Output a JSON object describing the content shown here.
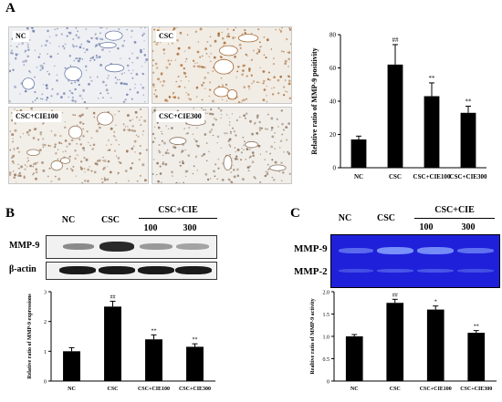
{
  "panels": {
    "a": {
      "letter": "A"
    },
    "b": {
      "letter": "B"
    },
    "c": {
      "letter": "C"
    }
  },
  "micrographs": [
    {
      "label": "NC"
    },
    {
      "label": "CSC"
    },
    {
      "label": "CSC+CIE100"
    },
    {
      "label": "CSC+CIE300"
    }
  ],
  "western": {
    "lanes": [
      "NC",
      "CSC",
      "100",
      "300"
    ],
    "group_label": "CSC+CIE",
    "rows": [
      "MMP-9",
      "β-actin"
    ]
  },
  "zymography": {
    "lanes": [
      "NC",
      "CSC",
      "100",
      "300"
    ],
    "group_label": "CSC+CIE",
    "rows": [
      "MMP-9",
      "MMP-2"
    ]
  },
  "colors": {
    "bar": "#000000",
    "zymo_bg": "#1f20d9",
    "stain_csc": "#b07a3a"
  },
  "chart_data": [
    {
      "type": "bar",
      "ylabel": "Relative ratio of MMP-9 positivity",
      "categories": [
        "NC",
        "CSC",
        "CSC+CIE100",
        "CSC+CIE300"
      ],
      "values": [
        17,
        62,
        43,
        33
      ],
      "errors": [
        2,
        12,
        8,
        4
      ],
      "annotations": [
        "",
        "##",
        "**",
        "**"
      ],
      "ylim": [
        0,
        80
      ],
      "yticks": [
        "0",
        "20",
        "40",
        "60",
        "80"
      ]
    },
    {
      "type": "bar",
      "ylabel": "Relative ratio of MMP-9 expressions",
      "categories": [
        "NC",
        "CSC",
        "CSC+CIE100",
        "CSC+CIE300"
      ],
      "values": [
        1.0,
        2.5,
        1.4,
        1.15
      ],
      "errors": [
        0.12,
        0.18,
        0.15,
        0.1
      ],
      "annotations": [
        "",
        "##",
        "**",
        "**"
      ],
      "ylim": [
        0,
        3
      ],
      "yticks": [
        "0",
        "1",
        "2",
        "3"
      ]
    },
    {
      "type": "bar",
      "ylabel": "Realtive ratio of MMP-9 activity",
      "categories": [
        "NC",
        "CSC",
        "CSC+CIE100",
        "CSC+CIE300"
      ],
      "values": [
        1.0,
        1.75,
        1.6,
        1.08
      ],
      "errors": [
        0.04,
        0.08,
        0.08,
        0.05
      ],
      "annotations": [
        "",
        "##",
        "*",
        "**"
      ],
      "ylim": [
        0,
        2.0
      ],
      "yticks": [
        "0",
        "0.5",
        "1.0",
        "1.5",
        "2.0"
      ]
    }
  ]
}
